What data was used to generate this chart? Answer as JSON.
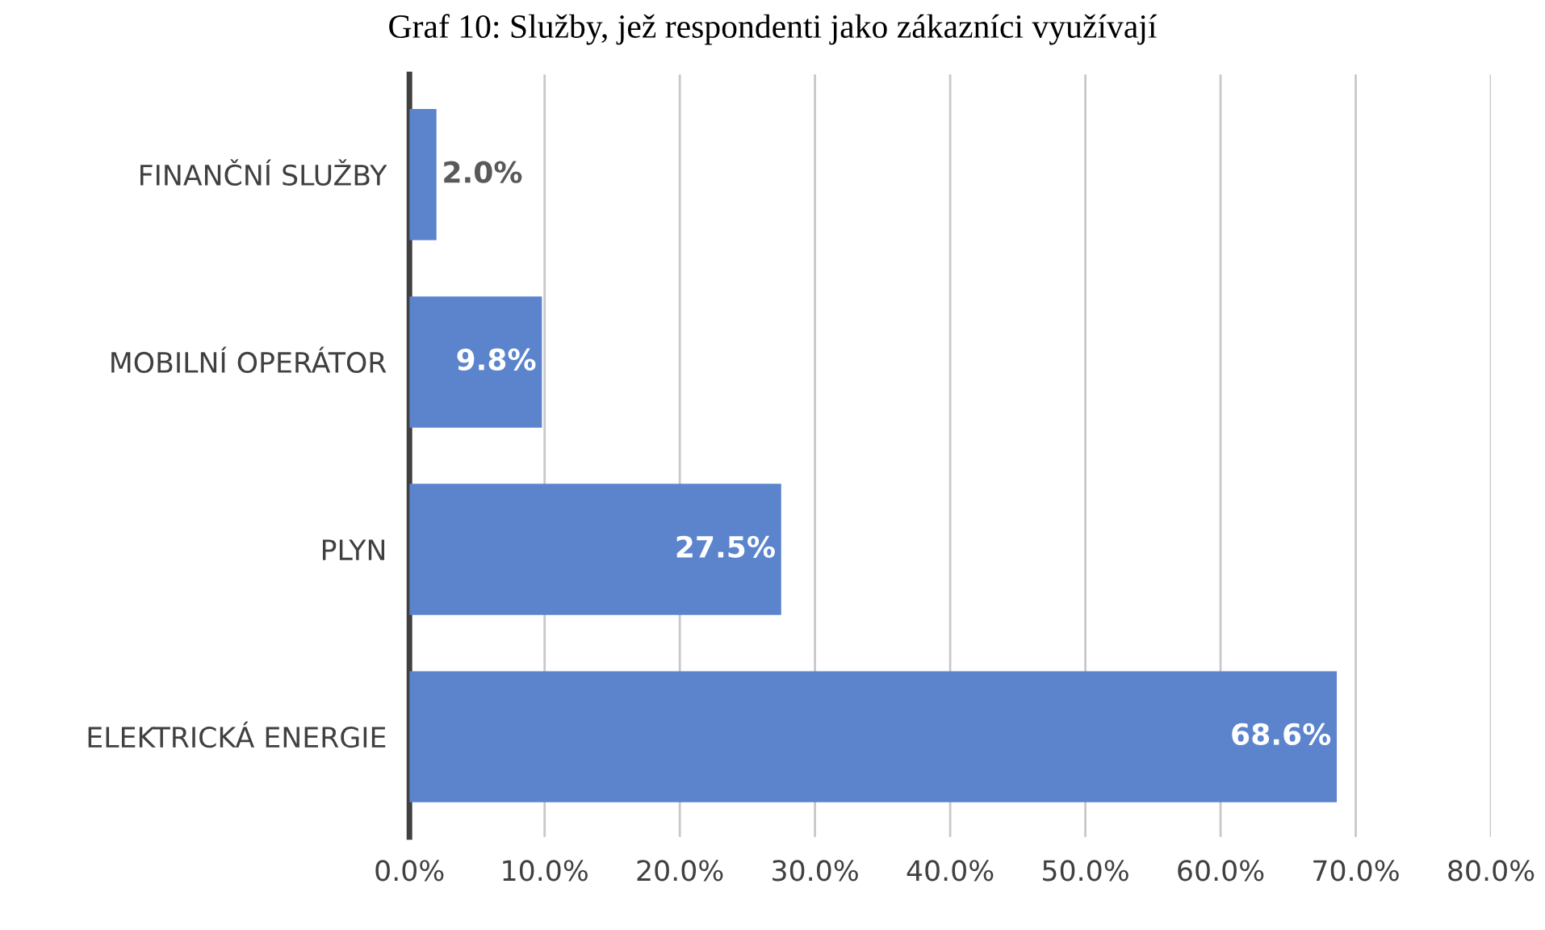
{
  "chart_data": {
    "type": "bar",
    "orientation": "horizontal",
    "title": "Graf 10: Služby, jež respondenti jako zákazníci využívají",
    "categories": [
      "FINANČNÍ SLUŽBY",
      "MOBILNÍ OPERÁTOR",
      "PLYN",
      "ELEKTRICKÁ ENERGIE"
    ],
    "values": [
      2.0,
      9.8,
      27.5,
      68.6
    ],
    "value_labels": [
      "2.0%",
      "9.8%",
      "27.5%",
      "68.6%"
    ],
    "color": "#5b84cd",
    "xlim": [
      0,
      80
    ],
    "xticks": [
      {
        "value": 0,
        "label": "0.0%"
      },
      {
        "value": 10,
        "label": "10.0%"
      },
      {
        "value": 20,
        "label": "20.0%"
      },
      {
        "value": 30,
        "label": "30.0%"
      },
      {
        "value": 40,
        "label": "40.0%"
      },
      {
        "value": 50,
        "label": "50.0%"
      },
      {
        "value": 60,
        "label": "60.0%"
      },
      {
        "value": 70,
        "label": "70.0%"
      },
      {
        "value": 80,
        "label": "80.0%"
      }
    ],
    "grid": "x",
    "legend": false
  }
}
